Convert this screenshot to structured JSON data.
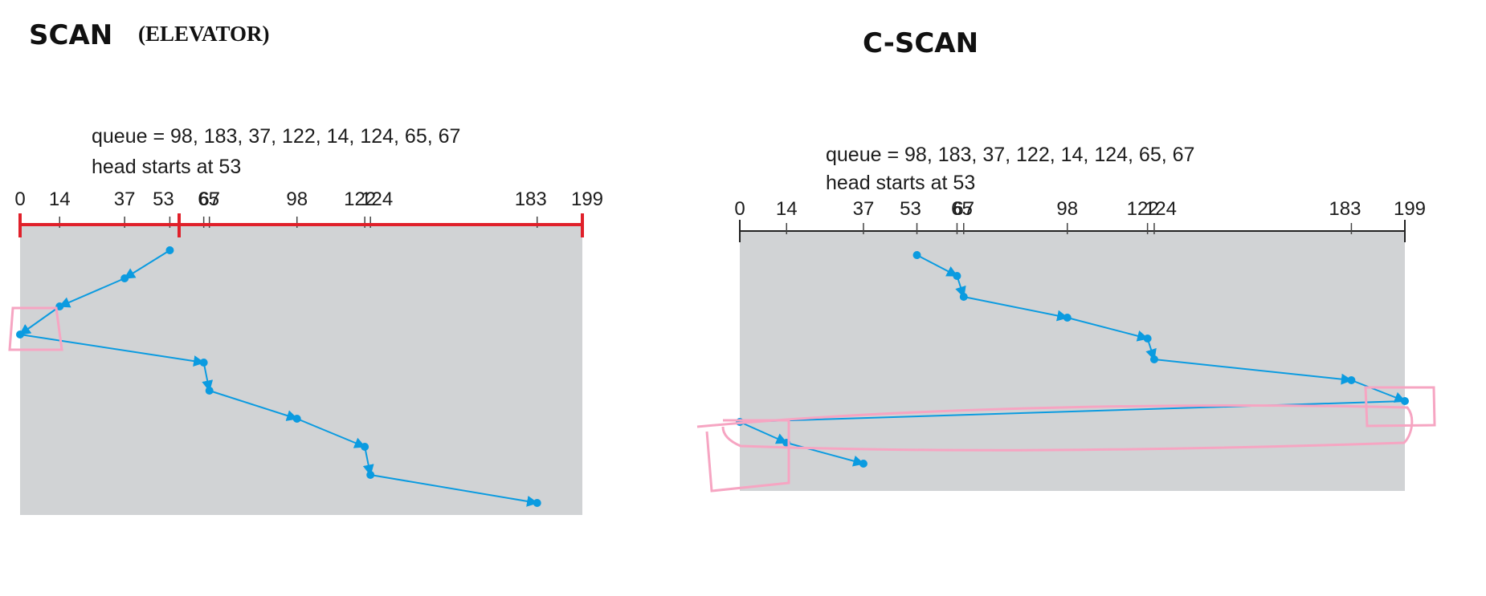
{
  "scan": {
    "title": "SCAN",
    "subtitle": "(ELEVATOR)",
    "queue_text": "queue = 98, 183, 37, 122, 14, 124, 65, 67",
    "head_text": "head starts at 53",
    "tick_labels": [
      "0",
      "14",
      "37",
      "53",
      "65",
      "67",
      "98",
      "122",
      "124",
      "183",
      "199"
    ],
    "service_order": [
      53,
      37,
      14,
      0,
      65,
      67,
      98,
      122,
      124,
      183
    ]
  },
  "cscan": {
    "title": "C-SCAN",
    "queue_text": "queue = 98, 183, 37, 122, 14, 124, 65, 67",
    "head_text": "head starts at 53",
    "tick_labels": [
      "0",
      "14",
      "37",
      "53",
      "65",
      "67",
      "98",
      "122",
      "124",
      "183",
      "199"
    ],
    "service_order": [
      53,
      65,
      67,
      98,
      122,
      124,
      183,
      199,
      0,
      14,
      37
    ]
  },
  "colors": {
    "panel": "#d1d3d5",
    "path": "#0b9be0",
    "scan_axis_highlight": "#e0202a",
    "annotation": "#f6a5c2",
    "axis": "#222222"
  }
}
